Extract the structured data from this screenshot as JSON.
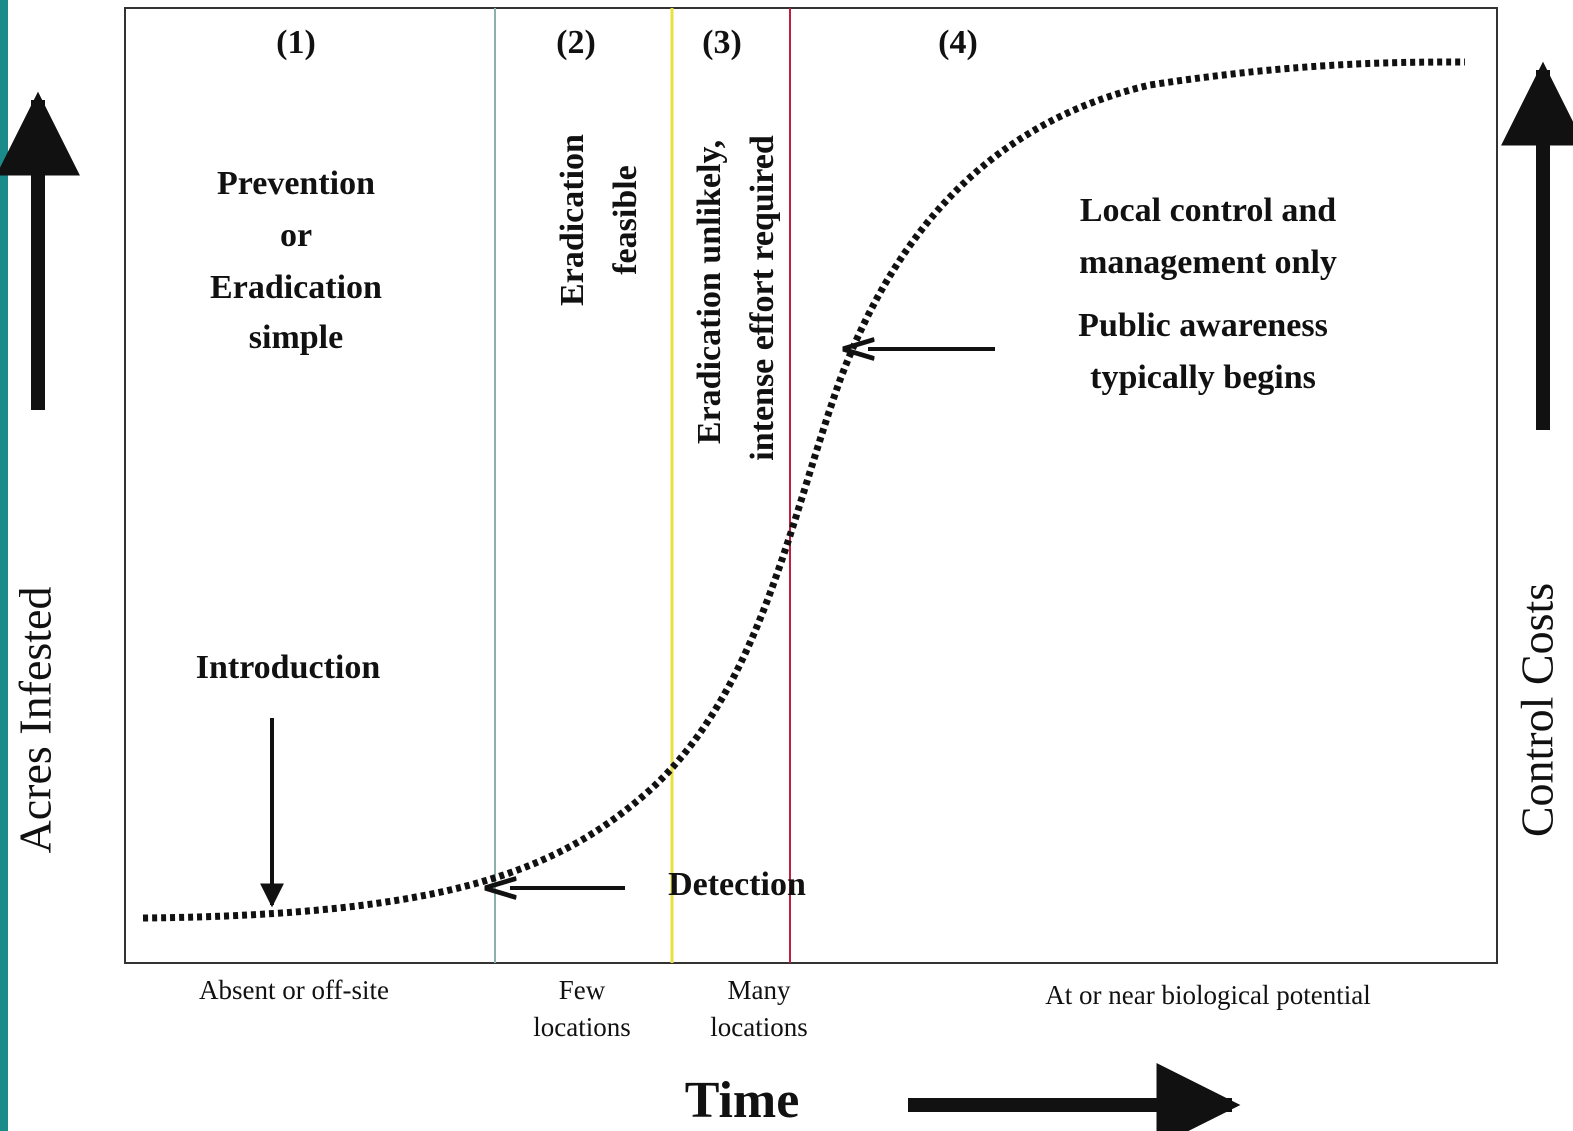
{
  "stages": [
    {
      "number": "(1)",
      "lines": [
        "Prevention",
        "or",
        "Eradication",
        "simple"
      ],
      "footer": [
        "Absent or off-site"
      ]
    },
    {
      "number": "(2)",
      "lines": [
        "Eradication",
        "feasible"
      ],
      "footer": [
        "Few",
        "locations"
      ]
    },
    {
      "number": "(3)",
      "lines": [
        "Eradication unlikely,",
        "intense effort required"
      ],
      "footer": [
        "Many",
        "locations"
      ]
    },
    {
      "number": "(4)",
      "lines": [
        "Local control and",
        "management only",
        "Public awareness",
        "typically begins"
      ],
      "footer": [
        "At or near biological potential"
      ]
    }
  ],
  "annotations": {
    "introduction": "Introduction",
    "detection": "Detection"
  },
  "axes": {
    "left": "Acres Infested",
    "right": "Control Costs",
    "bottom": "Time"
  }
}
